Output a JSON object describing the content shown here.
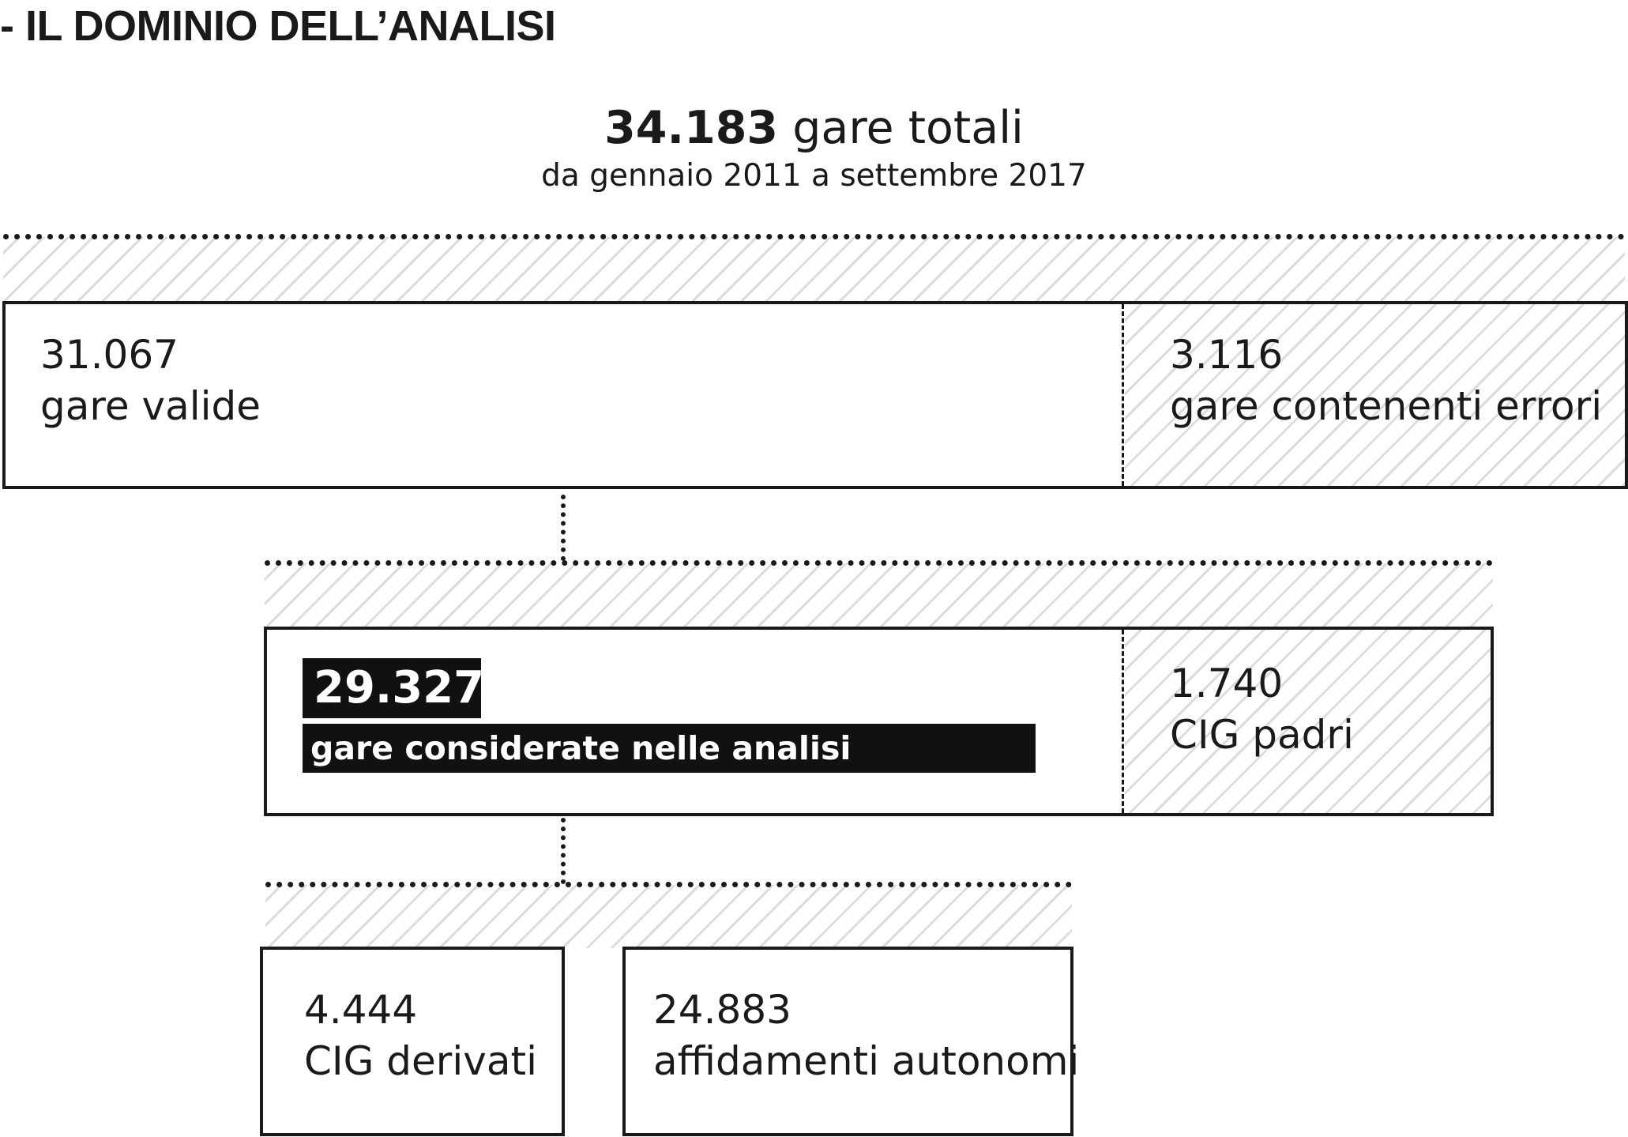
{
  "title": "- IL DOMINIO DELL’ANALISI",
  "total": {
    "number": "34.183",
    "label": " gare totali",
    "period": "da gennaio 2011 a settembre 2017"
  },
  "level1": {
    "valid": {
      "number": "31.067",
      "label": "gare valide"
    },
    "errors": {
      "number": "3.116",
      "label": "gare contenenti errori"
    }
  },
  "level2": {
    "considered": {
      "number": "29.327",
      "label": "gare considerate nelle analisi"
    },
    "parents": {
      "number": "1.740",
      "label": "CIG padri"
    }
  },
  "level3": {
    "derived": {
      "number": "4.444",
      "label": "CIG derivati"
    },
    "autonomous": {
      "number": "24.883",
      "label": "affidamenti autonomi"
    }
  },
  "colors": {
    "ink": "#1a1a1a",
    "hatch": "#dcdcdc",
    "highlight": "#111111"
  }
}
